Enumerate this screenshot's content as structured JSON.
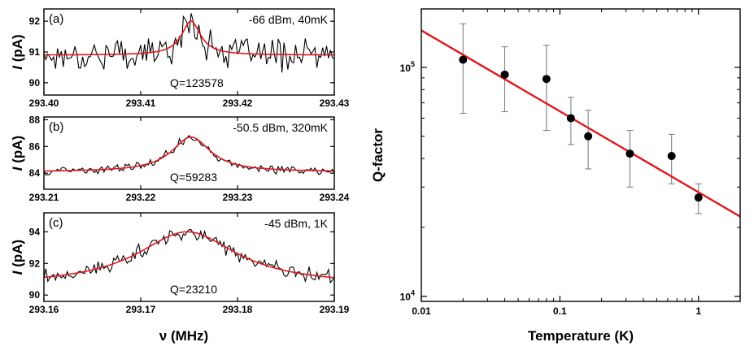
{
  "chart_data": [
    {
      "type": "line",
      "id": "a",
      "panel_label": "(a)",
      "annotation": "-66 dBm, 40mK",
      "q_label": "Q=123578",
      "ylabel_italic": "I",
      "ylabel_unit": " (pA)",
      "xlabel": "",
      "xlim": [
        293.4,
        293.43
      ],
      "ylim": [
        89.6,
        92.4
      ],
      "xticks": [
        "293.40",
        "293.41",
        "293.42",
        "293.43"
      ],
      "yticks": [
        90,
        91,
        92
      ],
      "fit": {
        "baseline": 90.9,
        "amplitude": 1.1,
        "center": 293.4152,
        "fwhm": 0.0024
      },
      "data_noise_amplitude": 0.45,
      "series": [
        {
          "name": "measured",
          "color": "#000000"
        },
        {
          "name": "Lorentzian fit",
          "color": "#e0191e"
        }
      ]
    },
    {
      "type": "line",
      "id": "b",
      "panel_label": "(b)",
      "annotation": "-50.5 dBm, 320mK",
      "q_label": "Q=59283",
      "ylabel_italic": "I",
      "ylabel_unit": " (pA)",
      "xlabel": "",
      "xlim": [
        293.21,
        293.24
      ],
      "ylim": [
        82.8,
        88.2
      ],
      "xticks": [
        "293.21",
        "293.22",
        "293.23",
        "293.24"
      ],
      "yticks": [
        84,
        86,
        88
      ],
      "fit": {
        "baseline": 84.1,
        "amplitude": 2.6,
        "center": 293.2252,
        "fwhm": 0.0049
      },
      "data_noise_amplitude": 0.3,
      "series": [
        {
          "name": "measured",
          "color": "#000000"
        },
        {
          "name": "Lorentzian fit",
          "color": "#e0191e"
        }
      ]
    },
    {
      "type": "line",
      "id": "c",
      "panel_label": "(c)",
      "annotation": "-45 dBm, 1K",
      "q_label": "Q=23210",
      "ylabel_italic": "I",
      "ylabel_unit": " (pA)",
      "xlabel": "",
      "xlim": [
        293.16,
        293.19
      ],
      "ylim": [
        89.6,
        95.2
      ],
      "xticks": [
        "293.16",
        "293.17",
        "293.18",
        "293.19"
      ],
      "yticks": [
        90,
        92,
        94
      ],
      "fit": {
        "baseline": 90.6,
        "amplitude": 3.4,
        "center": 293.1748,
        "fwhm": 0.0126
      },
      "data_noise_amplitude": 0.45,
      "series": [
        {
          "name": "measured",
          "color": "#000000"
        },
        {
          "name": "Lorentzian fit",
          "color": "#e0191e"
        }
      ]
    },
    {
      "type": "scatter",
      "id": "qfactor",
      "xlabel": "Temperature (K)",
      "ylabel": "Q-factor",
      "xscale": "log",
      "yscale": "log",
      "xlim": [
        0.01,
        2.0
      ],
      "ylim": [
        9500,
        180000
      ],
      "xticks": [
        {
          "value": 0.01,
          "label": "0.01"
        },
        {
          "value": 0.1,
          "label": "0.1"
        },
        {
          "value": 1,
          "label": "1"
        }
      ],
      "yticks": [
        {
          "value": 10000,
          "base": "10",
          "exp": "4"
        },
        {
          "value": 100000,
          "base": "10",
          "exp": "5"
        }
      ],
      "points": [
        {
          "x": 0.02,
          "y": 108000,
          "err_low": 63000,
          "err_high": 155000
        },
        {
          "x": 0.04,
          "y": 93000,
          "err_low": 64000,
          "err_high": 123000
        },
        {
          "x": 0.08,
          "y": 89000,
          "err_low": 53000,
          "err_high": 125000
        },
        {
          "x": 0.12,
          "y": 60000,
          "err_low": 46000,
          "err_high": 74000
        },
        {
          "x": 0.16,
          "y": 50000,
          "err_low": 36000,
          "err_high": 65000
        },
        {
          "x": 0.32,
          "y": 42000,
          "err_low": 30000,
          "err_high": 53000
        },
        {
          "x": 0.64,
          "y": 41000,
          "err_low": 31000,
          "err_high": 51000
        },
        {
          "x": 1.0,
          "y": 27000,
          "err_low": 23000,
          "err_high": 31000
        }
      ],
      "fit_line": {
        "x": [
          0.01,
          2.0
        ],
        "y": [
          145000,
          22300
        ]
      },
      "colors": {
        "points": "#000000",
        "fit": "#e0191e",
        "errorbars": "#777777"
      }
    }
  ],
  "shared": {
    "left_xlabel": "ν (MHz)"
  }
}
